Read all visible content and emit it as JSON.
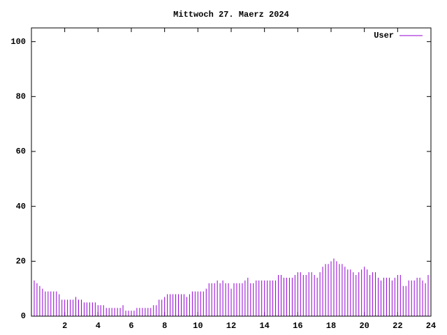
{
  "chart_data": {
    "type": "impulses",
    "title": "Mittwoch 27. Maerz 2024",
    "xlim": [
      0,
      24
    ],
    "xticks": [
      2,
      4,
      6,
      8,
      10,
      12,
      14,
      16,
      18,
      20,
      22,
      24
    ],
    "ylim": [
      0,
      105
    ],
    "yticks": [
      0,
      20,
      40,
      60,
      80,
      100
    ],
    "legend": "top-right",
    "x": [
      0,
      0.167,
      0.333,
      0.5,
      0.667,
      0.833,
      1,
      1.167,
      1.333,
      1.5,
      1.667,
      1.833,
      2,
      2.167,
      2.333,
      2.5,
      2.667,
      2.833,
      3,
      3.167,
      3.333,
      3.5,
      3.667,
      3.833,
      4,
      4.167,
      4.333,
      4.5,
      4.667,
      4.833,
      5,
      5.167,
      5.333,
      5.5,
      5.667,
      5.833,
      6,
      6.167,
      6.333,
      6.5,
      6.667,
      6.833,
      7,
      7.167,
      7.333,
      7.5,
      7.667,
      7.833,
      8,
      8.167,
      8.333,
      8.5,
      8.667,
      8.833,
      9,
      9.167,
      9.333,
      9.5,
      9.667,
      9.833,
      10,
      10.167,
      10.333,
      10.5,
      10.667,
      10.833,
      11,
      11.167,
      11.333,
      11.5,
      11.667,
      11.833,
      12,
      12.167,
      12.333,
      12.5,
      12.667,
      12.833,
      13,
      13.167,
      13.333,
      13.5,
      13.667,
      13.833,
      14,
      14.167,
      14.333,
      14.5,
      14.667,
      14.833,
      15,
      15.167,
      15.333,
      15.5,
      15.667,
      15.833,
      16,
      16.167,
      16.333,
      16.5,
      16.667,
      16.833,
      17,
      17.167,
      17.333,
      17.5,
      17.667,
      17.833,
      18,
      18.167,
      18.333,
      18.5,
      18.667,
      18.833,
      19,
      19.167,
      19.333,
      19.5,
      19.667,
      19.833,
      20,
      20.167,
      20.333,
      20.5,
      20.667,
      20.833,
      21,
      21.167,
      21.333,
      21.5,
      21.667,
      21.833,
      22,
      22.167,
      22.333,
      22.5,
      22.667,
      22.833,
      23,
      23.167,
      23.333,
      23.5,
      23.667,
      23.833,
      24
    ],
    "series": [
      {
        "name": "User",
        "color": "#9400d3",
        "values": [
          14,
          13,
          12,
          11,
          10,
          9,
          9,
          9,
          9,
          9,
          8,
          6,
          6,
          6,
          6,
          6,
          7,
          6,
          6,
          5,
          5,
          5,
          5,
          5,
          4,
          4,
          4,
          3,
          3,
          3,
          3,
          3,
          3,
          4,
          2,
          2,
          2,
          2,
          3,
          3,
          3,
          3,
          3,
          3,
          4,
          4,
          6,
          6,
          7,
          8,
          8,
          8,
          8,
          8,
          8,
          8,
          7,
          8,
          9,
          9,
          9,
          9,
          9,
          10,
          12,
          12,
          12,
          13,
          12,
          13,
          12,
          12,
          10,
          12,
          12,
          12,
          12,
          13,
          14,
          12,
          12,
          13,
          13,
          13,
          13,
          13,
          13,
          13,
          13,
          15,
          15,
          14,
          14,
          14,
          14,
          15,
          16,
          16,
          15,
          15,
          16,
          16,
          15,
          14,
          16,
          18,
          19,
          19,
          20,
          21,
          20,
          19,
          19,
          18,
          17,
          17,
          16,
          15,
          16,
          17,
          18,
          17,
          15,
          16,
          16,
          14,
          13,
          14,
          14,
          14,
          13,
          14,
          15,
          15,
          11,
          11,
          13,
          13,
          13,
          14,
          14,
          13,
          12,
          15,
          13
        ]
      }
    ]
  }
}
